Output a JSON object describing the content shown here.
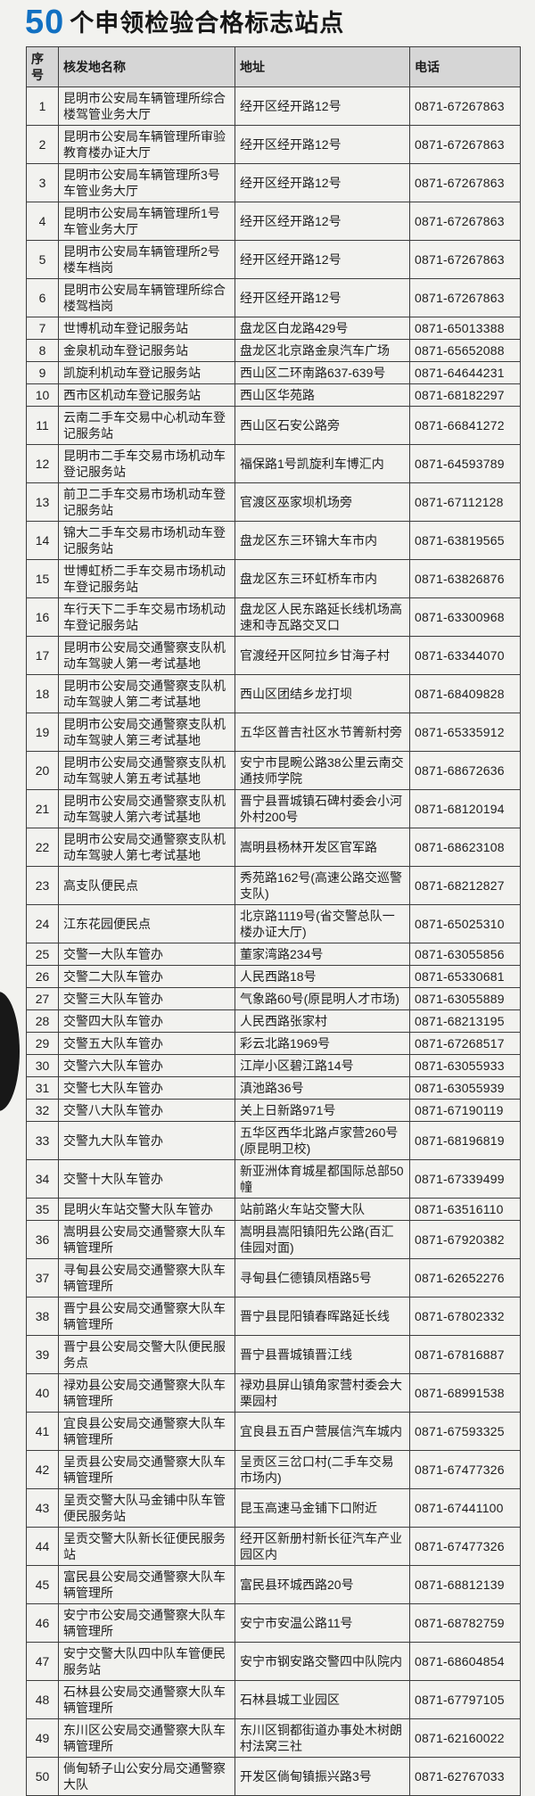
{
  "title": {
    "count": "50",
    "text": "个申领检验合格标志站点"
  },
  "accent_color": "#1170c2",
  "header_bg_color": "#d6d6d6",
  "table": {
    "headers": [
      "序号",
      "核发地名称",
      "地址",
      "电话"
    ],
    "rows": [
      {
        "no": "1",
        "name": "昆明市公安局车辆管理所综合楼驾管业务大厅",
        "address": "经开区经开路12号",
        "phone": "0871-67267863"
      },
      {
        "no": "2",
        "name": "昆明市公安局车辆管理所审验教育楼办证大厅",
        "address": "经开区经开路12号",
        "phone": "0871-67267863"
      },
      {
        "no": "3",
        "name": "昆明市公安局车辆管理所3号车管业务大厅",
        "address": "经开区经开路12号",
        "phone": "0871-67267863"
      },
      {
        "no": "4",
        "name": "昆明市公安局车辆管理所1号车管业务大厅",
        "address": "经开区经开路12号",
        "phone": "0871-67267863"
      },
      {
        "no": "5",
        "name": "昆明市公安局车辆管理所2号楼车档岗",
        "address": "经开区经开路12号",
        "phone": "0871-67267863"
      },
      {
        "no": "6",
        "name": "昆明市公安局车辆管理所综合楼驾档岗",
        "address": "经开区经开路12号",
        "phone": "0871-67267863"
      },
      {
        "no": "7",
        "name": "世博机动车登记服务站",
        "address": "盘龙区白龙路429号",
        "phone": "0871-65013388"
      },
      {
        "no": "8",
        "name": "金泉机动车登记服务站",
        "address": "盘龙区北京路金泉汽车广场",
        "phone": "0871-65652088"
      },
      {
        "no": "9",
        "name": "凯旋利机动车登记服务站",
        "address": "西山区二环南路637-639号",
        "phone": "0871-64644231"
      },
      {
        "no": "10",
        "name": "西市区机动车登记服务站",
        "address": "西山区华苑路",
        "phone": "0871-68182297"
      },
      {
        "no": "11",
        "name": "云南二手车交易中心机动车登记服务站",
        "address": "西山区石安公路旁",
        "phone": "0871-66841272"
      },
      {
        "no": "12",
        "name": "昆明市二手车交易市场机动车登记服务站",
        "address": "福保路1号凯旋利车博汇内",
        "phone": "0871-64593789"
      },
      {
        "no": "13",
        "name": "前卫二手车交易市场机动车登记服务站",
        "address": "官渡区巫家坝机场旁",
        "phone": "0871-67112128"
      },
      {
        "no": "14",
        "name": "锦大二手车交易市场机动车登记服务站",
        "address": "盘龙区东三环锦大车市内",
        "phone": "0871-63819565"
      },
      {
        "no": "15",
        "name": "世博虹桥二手车交易市场机动车登记服务站",
        "address": "盘龙区东三环虹桥车市内",
        "phone": "0871-63826876"
      },
      {
        "no": "16",
        "name": "车行天下二手车交易市场机动车登记服务站",
        "address": "盘龙区人民东路延长线机场高速和寺瓦路交叉口",
        "phone": "0871-63300968"
      },
      {
        "no": "17",
        "name": "昆明市公安局交通警察支队机动车驾驶人第一考试基地",
        "address": "官渡经开区阿拉乡甘海子村",
        "phone": "0871-63344070"
      },
      {
        "no": "18",
        "name": "昆明市公安局交通警察支队机动车驾驶人第二考试基地",
        "address": "西山区团结乡龙打坝",
        "phone": "0871-68409828"
      },
      {
        "no": "19",
        "name": "昆明市公安局交通警察支队机动车驾驶人第三考试基地",
        "address": "五华区普吉社区水节箐新村旁",
        "phone": "0871-65335912"
      },
      {
        "no": "20",
        "name": "昆明市公安局交通警察支队机动车驾驶人第五考试基地",
        "address": "安宁市昆畹公路38公里云南交通技师学院",
        "phone": "0871-68672636"
      },
      {
        "no": "21",
        "name": "昆明市公安局交通警察支队机动车驾驶人第六考试基地",
        "address": "晋宁县晋城镇石碑村委会小河外村200号",
        "phone": "0871-68120194"
      },
      {
        "no": "22",
        "name": "昆明市公安局交通警察支队机动车驾驶人第七考试基地",
        "address": "嵩明县杨林开发区官军路",
        "phone": "0871-68623108"
      },
      {
        "no": "23",
        "name": "高支队便民点",
        "address": "秀苑路162号(高速公路交巡警支队)",
        "phone": "0871-68212827"
      },
      {
        "no": "24",
        "name": "江东花园便民点",
        "address": "北京路1119号(省交警总队一楼办证大厅)",
        "phone": "0871-65025310"
      },
      {
        "no": "25",
        "name": "交警一大队车管办",
        "address": "董家湾路234号",
        "phone": "0871-63055856"
      },
      {
        "no": "26",
        "name": "交警二大队车管办",
        "address": "人民西路18号",
        "phone": "0871-65330681"
      },
      {
        "no": "27",
        "name": "交警三大队车管办",
        "address": "气象路60号(原昆明人才市场)",
        "phone": "0871-63055889"
      },
      {
        "no": "28",
        "name": "交警四大队车管办",
        "address": "人民西路张家村",
        "phone": "0871-68213195"
      },
      {
        "no": "29",
        "name": "交警五大队车管办",
        "address": "彩云北路1969号",
        "phone": "0871-67268517"
      },
      {
        "no": "30",
        "name": "交警六大队车管办",
        "address": "江岸小区碧江路14号",
        "phone": "0871-63055933"
      },
      {
        "no": "31",
        "name": "交警七大队车管办",
        "address": "滇池路36号",
        "phone": "0871-63055939"
      },
      {
        "no": "32",
        "name": "交警八大队车管办",
        "address": "关上日新路971号",
        "phone": "0871-67190119"
      },
      {
        "no": "33",
        "name": "交警九大队车管办",
        "address": "五华区西华北路卢家营260号(原昆明卫校)",
        "phone": "0871-68196819"
      },
      {
        "no": "34",
        "name": "交警十大队车管办",
        "address": "新亚洲体育城星都国际总部50幢",
        "phone": "0871-67339499"
      },
      {
        "no": "35",
        "name": "昆明火车站交警大队车管办",
        "address": "站前路火车站交警大队",
        "phone": "0871-63516110"
      },
      {
        "no": "36",
        "name": "嵩明县公安局交通警察大队车辆管理所",
        "address": "嵩明县嵩阳镇阳先公路(百汇佳园对面)",
        "phone": "0871-67920382"
      },
      {
        "no": "37",
        "name": "寻甸县公安局交通警察大队车辆管理所",
        "address": "寻甸县仁德镇凤梧路5号",
        "phone": "0871-62652276"
      },
      {
        "no": "38",
        "name": "晋宁县公安局交通警察大队车辆管理所",
        "address": "晋宁县昆阳镇春晖路延长线",
        "phone": "0871-67802332"
      },
      {
        "no": "39",
        "name": "晋宁县公安局交警大队便民服务点",
        "address": "晋宁县晋城镇晋江线",
        "phone": "0871-67816887"
      },
      {
        "no": "40",
        "name": "禄劝县公安局交通警察大队车辆管理所",
        "address": "禄劝县屏山镇角家营村委会大栗园村",
        "phone": "0871-68991538"
      },
      {
        "no": "41",
        "name": "宜良县公安局交通警察大队车辆管理所",
        "address": "宜良县五百户营展信汽车城内",
        "phone": "0871-67593325"
      },
      {
        "no": "42",
        "name": "呈贡县公安局交通警察大队车辆管理所",
        "address": "呈贡区三岔口村(二手车交易市场内)",
        "phone": "0871-67477326"
      },
      {
        "no": "43",
        "name": "呈贡交警大队马金铺中队车管便民服务站",
        "address": "昆玉高速马金铺下口附近",
        "phone": "0871-67441100"
      },
      {
        "no": "44",
        "name": "呈贡交警大队新长征便民服务站",
        "address": "经开区新册村新长征汽车产业园区内",
        "phone": "0871-67477326"
      },
      {
        "no": "45",
        "name": "富民县公安局交通警察大队车辆管理所",
        "address": "富民县环城西路20号",
        "phone": "0871-68812139"
      },
      {
        "no": "46",
        "name": "安宁市公安局交通警察大队车辆管理所",
        "address": "安宁市安温公路11号",
        "phone": "0871-68782759"
      },
      {
        "no": "47",
        "name": "安宁交警大队四中队车管便民服务站",
        "address": "安宁市钢安路交警四中队院内",
        "phone": "0871-68604854"
      },
      {
        "no": "48",
        "name": "石林县公安局交通警察大队车辆管理所",
        "address": "石林县城工业园区",
        "phone": "0871-67797105"
      },
      {
        "no": "49",
        "name": "东川区公安局交通警察大队车辆管理所",
        "address": "东川区铜都街道办事处木树朗村法窝三社",
        "phone": "0871-62160022"
      },
      {
        "no": "50",
        "name": "倘甸轿子山公安分局交通警察大队",
        "address": "开发区倘甸镇振兴路3号",
        "phone": "0871-62767033"
      }
    ]
  }
}
